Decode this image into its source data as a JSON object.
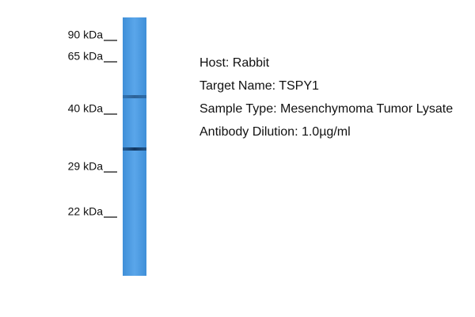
{
  "markers": [
    "90 kDa",
    "65 kDa",
    "40 kDa",
    "29 kDa",
    "22 kDa"
  ],
  "info": [
    "Host: Rabbit",
    "Target Name: TSPY1",
    "Sample Type: Mesenchymoma Tumor Lysate",
    "Antibody Dilution: 1.0µg/ml"
  ]
}
